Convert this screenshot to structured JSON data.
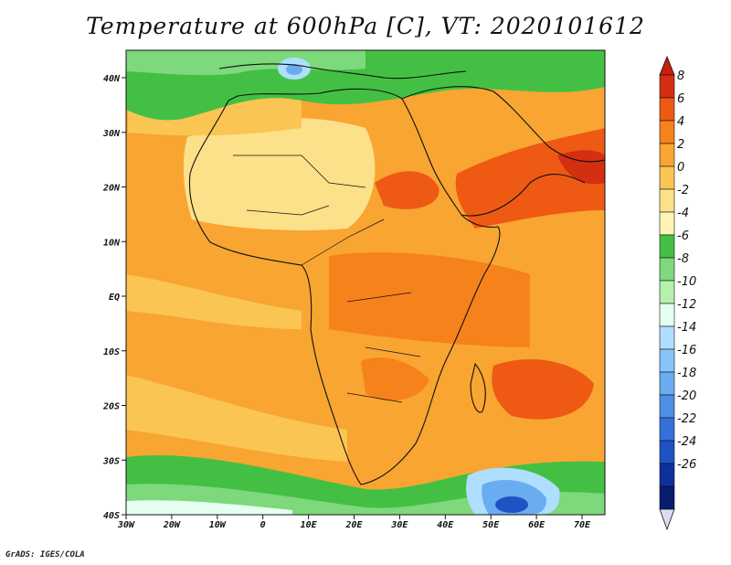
{
  "title": "Temperature at 600hPa [C], VT: 2020101612",
  "credit": "GrADS: IGES/COLA",
  "map": {
    "lat_labels": [
      "40N",
      "30N",
      "20N",
      "10N",
      "EQ",
      "10S",
      "20S",
      "30S",
      "40S"
    ],
    "lon_labels": [
      "30W",
      "20W",
      "10W",
      "0",
      "10E",
      "20E",
      "30E",
      "40E",
      "50E",
      "60E",
      "70E"
    ]
  },
  "colorbar": {
    "labels": [
      "8",
      "6",
      "4",
      "2",
      "0",
      "-2",
      "-4",
      "-6",
      "-8",
      "-10",
      "-12",
      "-14",
      "-16",
      "-18",
      "-20",
      "-22",
      "-24",
      "-26"
    ],
    "colors": [
      "#d32f10",
      "#ee5a14",
      "#f6821c",
      "#f9a532",
      "#fbc554",
      "#fde08a",
      "#fdf3b4",
      "#43c043",
      "#7ed87c",
      "#b4f0ae",
      "#e6fff0",
      "#b0deff",
      "#88c4fa",
      "#6aacf0",
      "#4e8ee6",
      "#3570d8",
      "#1f52c4",
      "#0e2f9e",
      "#0a1c6e"
    ],
    "top_arrow_color": "#c8200a",
    "bottom_arrow_color": "#dcdcf4"
  }
}
